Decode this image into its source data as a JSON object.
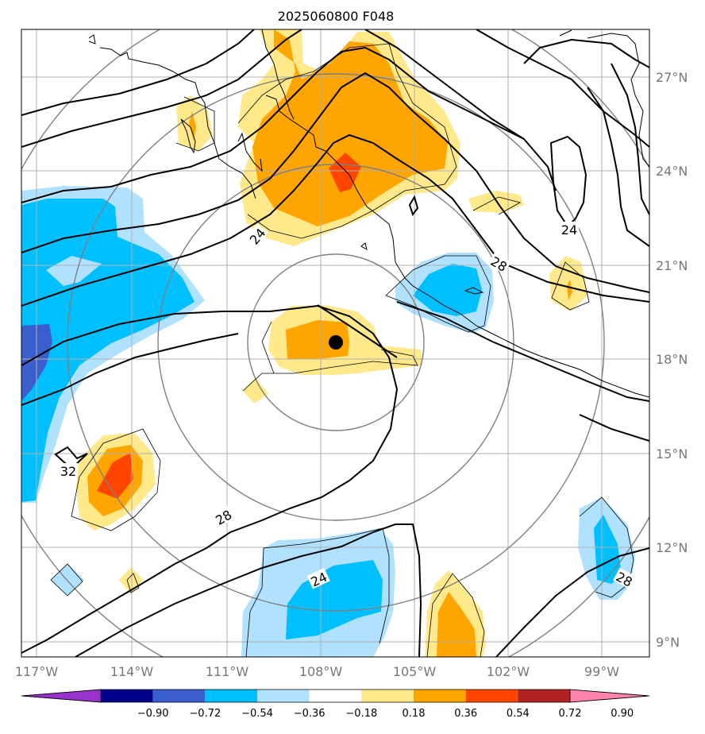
{
  "title": "2025060800 F048",
  "lon_labels": [
    "117°W",
    "114°W",
    "111°W",
    "108°W",
    "105°W",
    "102°W",
    "99°W"
  ],
  "lat_labels": [
    "27°N",
    "24°N",
    "21°N",
    "18°N",
    "15°N",
    "12°N",
    "9°N"
  ],
  "colorbar": {
    "tick_labels": [
      "−0.90",
      "−0.72",
      "−0.54",
      "−0.36",
      "−0.18",
      "0.18",
      "0.36",
      "0.54",
      "0.72",
      "0.90"
    ],
    "colors": [
      "#9932CC",
      "#00008B",
      "#3A5FCD",
      "#00BFFF",
      "#B0E2FF",
      "#FFFFFF",
      "#FFE98A",
      "#FFA500",
      "#FF4500",
      "#B22222",
      "#FF82AB"
    ]
  },
  "contour_labels": [
    {
      "text": "24",
      "near": "northwest-of-center"
    },
    {
      "text": "24",
      "near": "east-upper"
    },
    {
      "text": "28",
      "near": "east-middle"
    },
    {
      "text": "32",
      "near": "west"
    },
    {
      "text": "28",
      "near": "southwest"
    },
    {
      "text": "24",
      "near": "south"
    },
    {
      "text": "28",
      "near": "southeast"
    }
  ],
  "storm_center_marker": {
    "symbol": "filled-circle",
    "color": "#000000"
  }
}
